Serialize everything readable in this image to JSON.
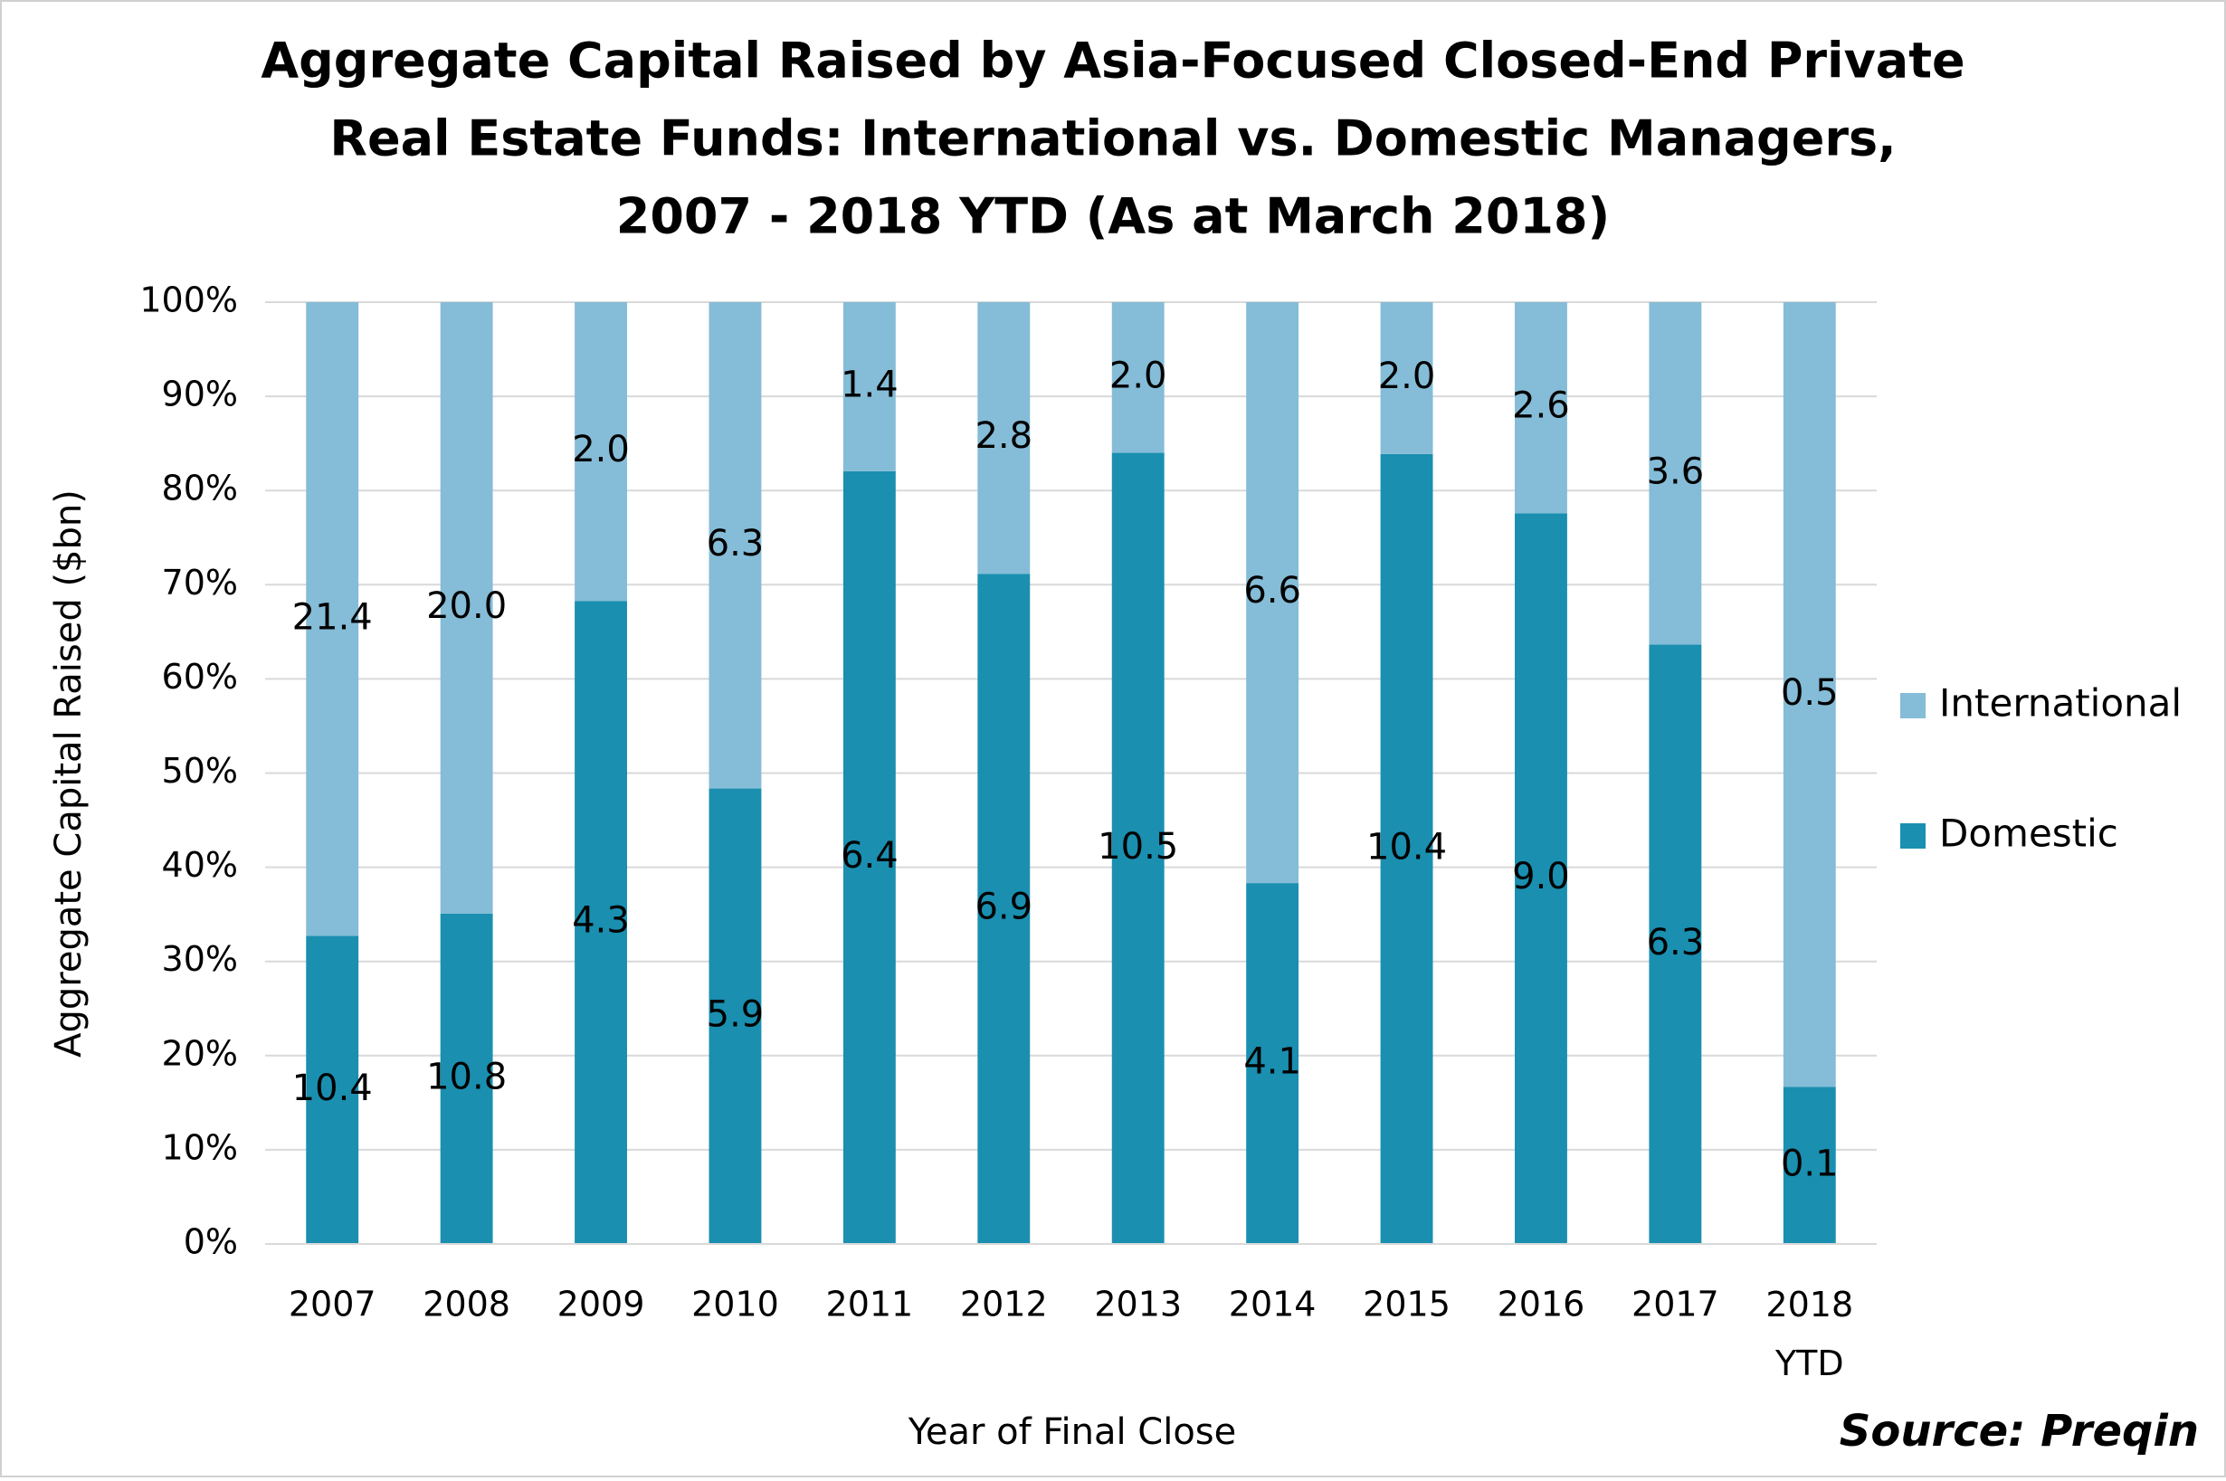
{
  "chart_data": {
    "type": "bar",
    "stacked": "percent",
    "title": [
      "Aggregate Capital Raised by Asia-Focused Closed-End Private",
      "Real Estate Funds: International vs. Domestic Managers,",
      "2007 - 2018 YTD (As at March 2018)"
    ],
    "x_label": "Year of Final Close",
    "y_label": "Aggregate Capital Raised ($bn)",
    "source": "Source: Preqin",
    "categories": [
      "2007",
      "2008",
      "2009",
      "2010",
      "2011",
      "2012",
      "2013",
      "2014",
      "2015",
      "2016",
      "2017",
      "2018 YTD"
    ],
    "series": [
      {
        "name": "Domestic",
        "color": "#1a8fb0",
        "values": [
          10.4,
          10.8,
          4.3,
          5.9,
          6.4,
          6.9,
          10.5,
          4.1,
          10.4,
          9.0,
          6.3,
          0.1
        ],
        "value_labels": [
          "10.4",
          "10.8",
          "4.3",
          "5.9",
          "6.4",
          "6.9",
          "10.5",
          "4.1",
          "10.4",
          "9.0",
          "6.3",
          "0.1"
        ]
      },
      {
        "name": "International",
        "color": "#85bcd7",
        "values": [
          21.4,
          20.0,
          2.0,
          6.3,
          1.4,
          2.8,
          2.0,
          6.6,
          2.0,
          2.6,
          3.6,
          0.5
        ],
        "value_labels": [
          "21.4",
          "20.0",
          "2.0",
          "6.3",
          "1.4",
          "2.8",
          "2.0",
          "6.6",
          "2.0",
          "2.6",
          "3.6",
          "0.5"
        ]
      }
    ],
    "ylim": [
      0,
      100
    ],
    "yticks": [
      {
        "value": 0,
        "label": "0%"
      },
      {
        "value": 10,
        "label": "10%"
      },
      {
        "value": 20,
        "label": "20%"
      },
      {
        "value": 30,
        "label": "30%"
      },
      {
        "value": 40,
        "label": "40%"
      },
      {
        "value": 50,
        "label": "50%"
      },
      {
        "value": 60,
        "label": "60%"
      },
      {
        "value": 70,
        "label": "70%"
      },
      {
        "value": 80,
        "label": "80%"
      },
      {
        "value": 90,
        "label": "90%"
      },
      {
        "value": 100,
        "label": "100%"
      }
    ],
    "grid": true,
    "legend": "right"
  }
}
